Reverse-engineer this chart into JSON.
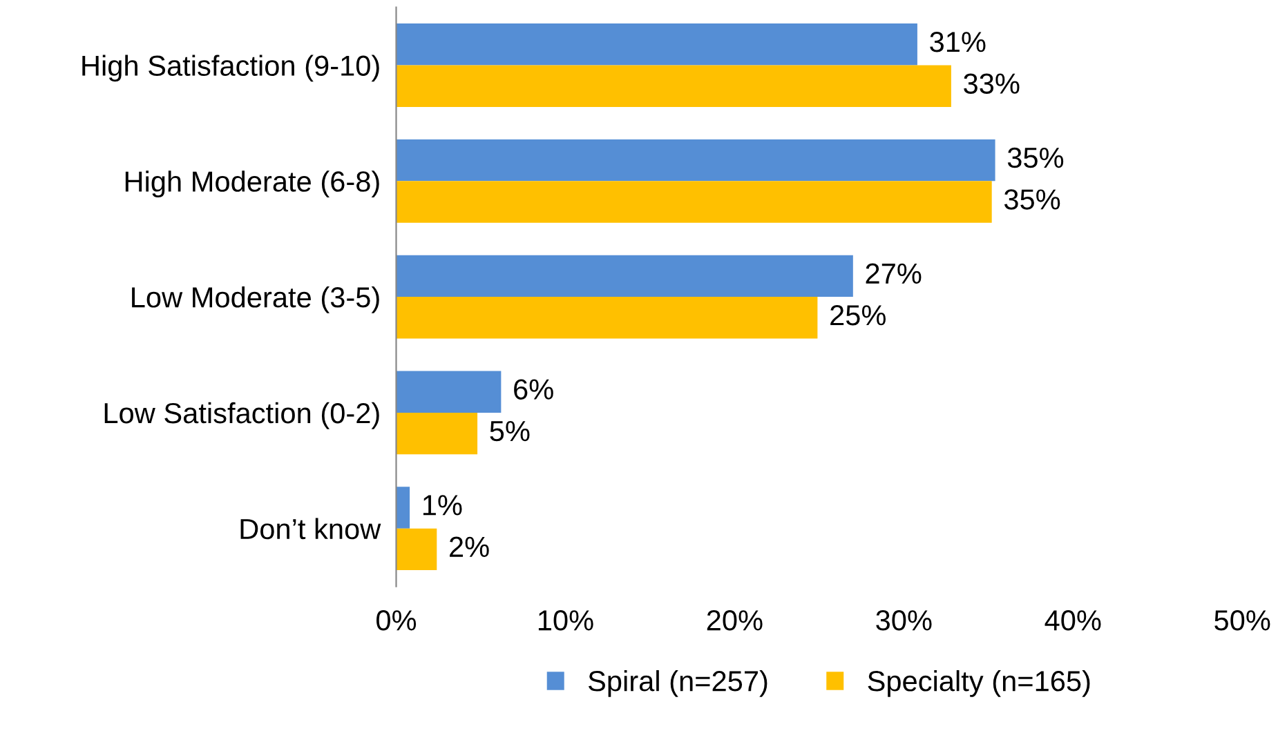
{
  "chart_data": {
    "type": "bar",
    "orientation": "horizontal",
    "categories": [
      "High Satisfaction (9-10)",
      "High Moderate (6-8)",
      "Low Moderate (3-5)",
      "Low Satisfaction (0-2)",
      "Don’t know"
    ],
    "series": [
      {
        "name": "Spiral (n=257)",
        "color": "#558ed5",
        "values": [
          30.8,
          35.4,
          27.0,
          6.2,
          0.8
        ],
        "value_labels": [
          "31%",
          "35%",
          "27%",
          "6%",
          "1%"
        ]
      },
      {
        "name": "Specialty (n=165)",
        "color": "#ffc000",
        "values": [
          32.8,
          35.2,
          24.9,
          4.8,
          2.4
        ],
        "value_labels": [
          "33%",
          "35%",
          "25%",
          "5%",
          "2%"
        ]
      }
    ],
    "xlim": [
      0,
      50
    ],
    "xticks": [
      {
        "value": 0,
        "label": "0%"
      },
      {
        "value": 10,
        "label": "10%"
      },
      {
        "value": 20,
        "label": "20%"
      },
      {
        "value": 30,
        "label": "30%"
      },
      {
        "value": 40,
        "label": "40%"
      },
      {
        "value": 50,
        "label": "50%"
      }
    ],
    "legend": "bottom",
    "grid": false
  }
}
